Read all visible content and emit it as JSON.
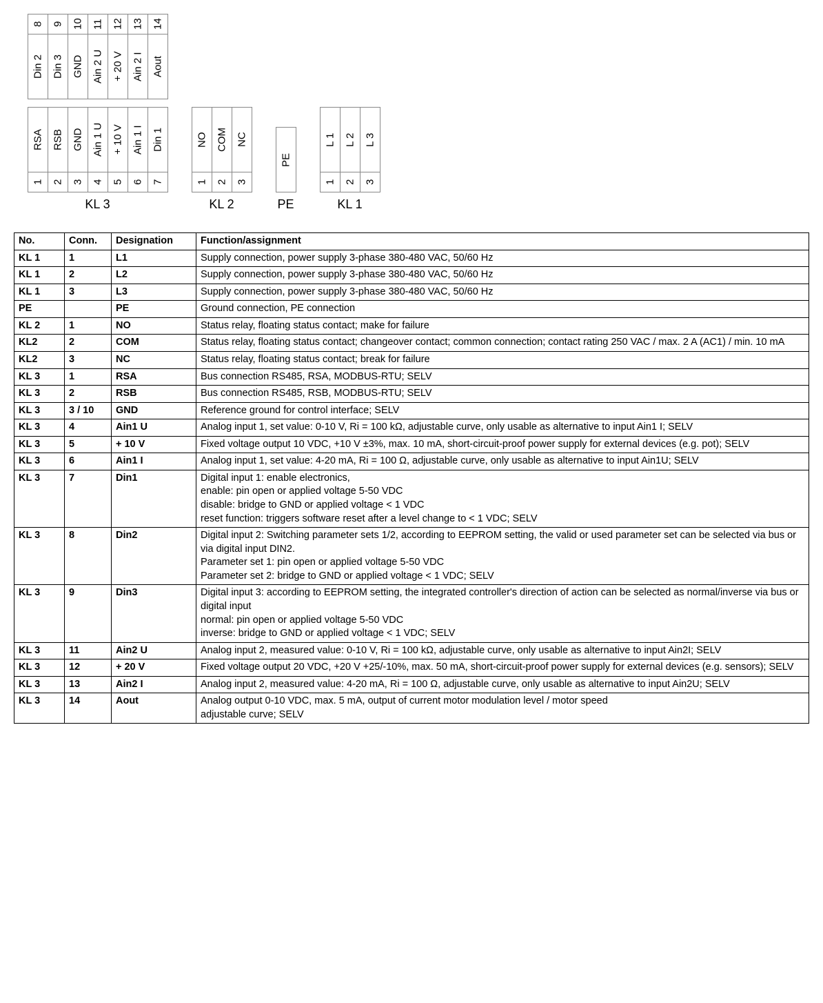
{
  "diagram": {
    "kl3": {
      "label": "KL 3",
      "upper_nums": [
        "8",
        "9",
        "10",
        "11",
        "12",
        "13",
        "14"
      ],
      "upper_names": [
        "Din 2",
        "Din 3",
        "GND",
        "Ain 2 U",
        "+ 20 V",
        "Ain 2 I",
        "Aout"
      ],
      "lower_names": [
        "RSA",
        "RSB",
        "GND",
        "Ain 1 U",
        "+ 10 V",
        "Ain 1 I",
        "Din 1"
      ],
      "lower_nums": [
        "1",
        "2",
        "3",
        "4",
        "5",
        "6",
        "7"
      ]
    },
    "kl2": {
      "label": "KL 2",
      "names": [
        "NO",
        "COM",
        "NC"
      ],
      "nums": [
        "1",
        "2",
        "3"
      ]
    },
    "pe": {
      "label": "PE",
      "name": "PE"
    },
    "kl1": {
      "label": "KL 1",
      "names": [
        "L 1",
        "L 2",
        "L 3"
      ],
      "nums": [
        "1",
        "2",
        "3"
      ]
    }
  },
  "table": {
    "headers": [
      "No.",
      "Conn.",
      "Designation",
      "Function/assignment"
    ],
    "rows": [
      {
        "no": "KL 1",
        "conn": "1",
        "des": "L1",
        "func": "Supply connection, power supply 3-phase 380-480 VAC, 50/60 Hz"
      },
      {
        "no": "KL 1",
        "conn": "2",
        "des": "L2",
        "func": "Supply connection, power supply 3-phase 380-480 VAC, 50/60 Hz"
      },
      {
        "no": "KL 1",
        "conn": "3",
        "des": "L3",
        "func": "Supply connection, power supply 3-phase 380-480 VAC, 50/60 Hz"
      },
      {
        "no": "PE",
        "conn": "",
        "des": "PE",
        "func": "Ground connection, PE connection"
      },
      {
        "no": "KL 2",
        "conn": "1",
        "des": "NO",
        "func": "Status relay, floating status contact; make for failure"
      },
      {
        "no": "KL2",
        "conn": "2",
        "des": "COM",
        "func": "Status relay, floating status contact; changeover contact; common connection; contact rating 250 VAC / max. 2 A (AC1) / min. 10 mA"
      },
      {
        "no": "KL2",
        "conn": "3",
        "des": "NC",
        "func": "Status relay, floating status contact; break for failure"
      },
      {
        "no": "KL 3",
        "conn": "1",
        "des": "RSA",
        "func": "Bus connection RS485, RSA, MODBUS-RTU; SELV"
      },
      {
        "no": "KL 3",
        "conn": "2",
        "des": "RSB",
        "func": "Bus connection RS485, RSB, MODBUS-RTU; SELV"
      },
      {
        "no": "KL 3",
        "conn": "3 / 10",
        "des": "GND",
        "func": "Reference ground for control interface; SELV"
      },
      {
        "no": "KL 3",
        "conn": "4",
        "des": "Ain1 U",
        "func": "Analog input 1, set value: 0-10 V, Ri = 100 kΩ, adjustable curve, only usable as alternative to input Ain1 I; SELV"
      },
      {
        "no": "KL 3",
        "conn": "5",
        "des": "+ 10 V",
        "func": "Fixed voltage output 10 VDC, +10 V ±3%, max. 10 mA, short-circuit-proof power supply for external devices (e.g. pot); SELV"
      },
      {
        "no": "KL 3",
        "conn": "6",
        "des": "Ain1 I",
        "func": "Analog input 1, set value: 4-20 mA, Ri = 100 Ω, adjustable curve, only usable as alternative to input Ain1U; SELV"
      },
      {
        "no": "KL 3",
        "conn": "7",
        "des": "Din1",
        "func": "Digital input 1: enable electronics,\nenable: pin open or applied voltage 5-50 VDC\ndisable: bridge to GND or applied voltage < 1 VDC\nreset function: triggers software reset after a level change to < 1 VDC; SELV"
      },
      {
        "no": "KL 3",
        "conn": "8",
        "des": "Din2",
        "func": "Digital input 2: Switching parameter sets 1/2, according to EEPROM setting, the valid or used parameter set can be selected via bus or via digital input DIN2.\nParameter set 1: pin open or applied voltage 5-50 VDC\nParameter set 2: bridge to GND or applied voltage < 1 VDC; SELV"
      },
      {
        "no": "KL 3",
        "conn": "9",
        "des": "Din3",
        "func": "Digital input 3: according to EEPROM setting, the integrated controller's direction of action can be selected as normal/inverse via bus or digital input\nnormal: pin open or applied voltage 5-50 VDC\ninverse: bridge to GND or applied voltage < 1 VDC; SELV"
      },
      {
        "no": "KL 3",
        "conn": "11",
        "des": "Ain2 U",
        "func": "Analog input 2, measured value: 0-10 V, Ri = 100 kΩ, adjustable curve, only usable as alternative to input Ain2I; SELV"
      },
      {
        "no": "KL 3",
        "conn": "12",
        "des": "+ 20 V",
        "func": "Fixed voltage output 20 VDC, +20 V +25/-10%, max. 50 mA, short-circuit-proof power supply for external devices (e.g. sensors); SELV"
      },
      {
        "no": "KL 3",
        "conn": "13",
        "des": "Ain2 I",
        "func": "Analog input 2, measured value: 4-20 mA, Ri = 100 Ω, adjustable curve, only usable as alternative to input Ain2U; SELV"
      },
      {
        "no": "KL 3",
        "conn": "14",
        "des": "Aout",
        "func": "Analog output 0-10 VDC, max. 5 mA, output of current motor modulation level / motor speed\nadjustable curve; SELV"
      }
    ]
  }
}
